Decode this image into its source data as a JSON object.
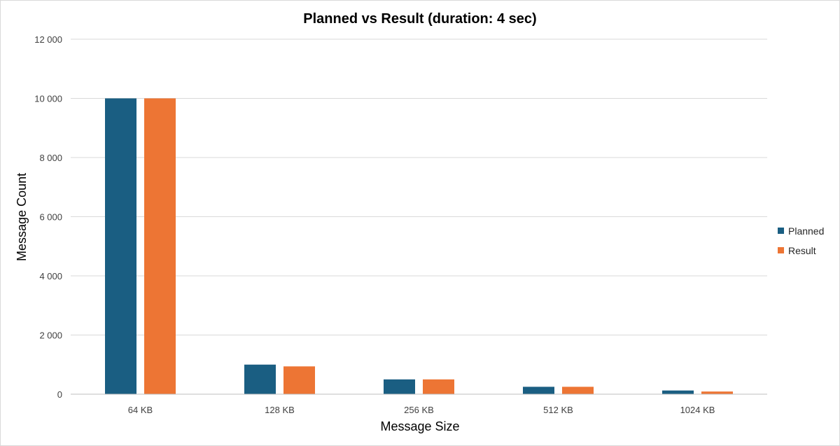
{
  "chart_data": {
    "type": "bar",
    "title": "Planned vs Result (duration: 4 sec)",
    "xlabel": "Message Size",
    "ylabel": "Message Count",
    "categories": [
      "64 KB",
      "128 KB",
      "256 KB",
      "512 KB",
      "1024 KB"
    ],
    "series": [
      {
        "name": "Planned",
        "color": "#1a5e82",
        "values": [
          10000,
          1000,
          500,
          250,
          125
        ]
      },
      {
        "name": "Result",
        "color": "#ed7534",
        "values": [
          10000,
          940,
          500,
          250,
          90
        ]
      }
    ],
    "ylim": [
      0,
      12000
    ],
    "yticks": [
      {
        "value": 0,
        "label": "0"
      },
      {
        "value": 2000,
        "label": "2 000"
      },
      {
        "value": 4000,
        "label": "4 000"
      },
      {
        "value": 6000,
        "label": "6 000"
      },
      {
        "value": 8000,
        "label": "8 000"
      },
      {
        "value": 10000,
        "label": "10 000"
      },
      {
        "value": 12000,
        "label": "12 000"
      }
    ],
    "grid": true,
    "legend_position": "right"
  }
}
